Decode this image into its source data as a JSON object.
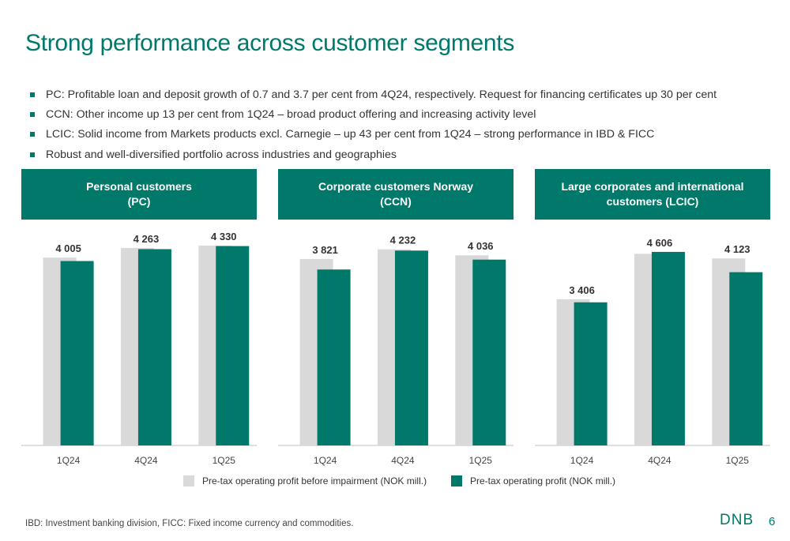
{
  "slide": {
    "title": "Strong performance across customer segments",
    "bullets": [
      "PC: Profitable loan and deposit growth of 0.7 and 3.7 per cent from 4Q24, respectively. Request for financing certificates up 30 per cent",
      "CCN: Other income up 13 per cent from 1Q24 – broad product offering and increasing activity level",
      "LCIC: Solid income from Markets products excl. Carnegie – up 43 per cent from 1Q24 – strong performance in IBD & FICC",
      "Robust and well-diversified portfolio across industries and geographies"
    ],
    "footnote": "IBD: Investment banking division, FICC: Fixed income currency and commodities.",
    "logo": "DNB",
    "page_number": "6"
  },
  "colors": {
    "accent": "#00796b",
    "before_impairment": "#d9d9d9",
    "after_impairment": "#00796b"
  },
  "legend": {
    "before_impairment": "Pre-tax operating profit before impairment (NOK mill.)",
    "after_impairment": "Pre-tax operating profit (NOK mill.)"
  },
  "chart_data": [
    {
      "type": "bar",
      "title_line1": "Personal customers",
      "title_line2": "(PC)",
      "categories": [
        "1Q24",
        "4Q24",
        "1Q25"
      ],
      "series": [
        {
          "name": "Pre-tax operating profit before impairment (NOK mill.)",
          "values": [
            4080,
            4290,
            4340
          ]
        },
        {
          "name": "Pre-tax operating profit (NOK mill.)",
          "values": [
            4005,
            4263,
            4330
          ]
        }
      ],
      "labels": [
        "4 005",
        "4 263",
        "4 330"
      ],
      "ylim": [
        0,
        4700
      ]
    },
    {
      "type": "bar",
      "title_line1": "Corporate customers Norway",
      "title_line2": "(CCN)",
      "categories": [
        "1Q24",
        "4Q24",
        "1Q25"
      ],
      "series": [
        {
          "name": "Pre-tax operating profit before impairment (NOK mill.)",
          "values": [
            4050,
            4260,
            4130
          ]
        },
        {
          "name": "Pre-tax operating profit (NOK mill.)",
          "values": [
            3821,
            4232,
            4036
          ]
        }
      ],
      "labels": [
        "3 821",
        "4 232",
        "4 036"
      ],
      "ylim": [
        0,
        4700
      ]
    },
    {
      "type": "bar",
      "title_line1": "Large corporates and international",
      "title_line2": "customers (LCIC)",
      "categories": [
        "1Q24",
        "4Q24",
        "1Q25"
      ],
      "series": [
        {
          "name": "Pre-tax operating profit before impairment (NOK mill.)",
          "values": [
            3480,
            4560,
            4450
          ]
        },
        {
          "name": "Pre-tax operating profit (NOK mill.)",
          "values": [
            3406,
            4606,
            4123
          ]
        }
      ],
      "labels": [
        "3 406",
        "4 606",
        "4 123"
      ],
      "ylim": [
        0,
        5150
      ]
    }
  ]
}
